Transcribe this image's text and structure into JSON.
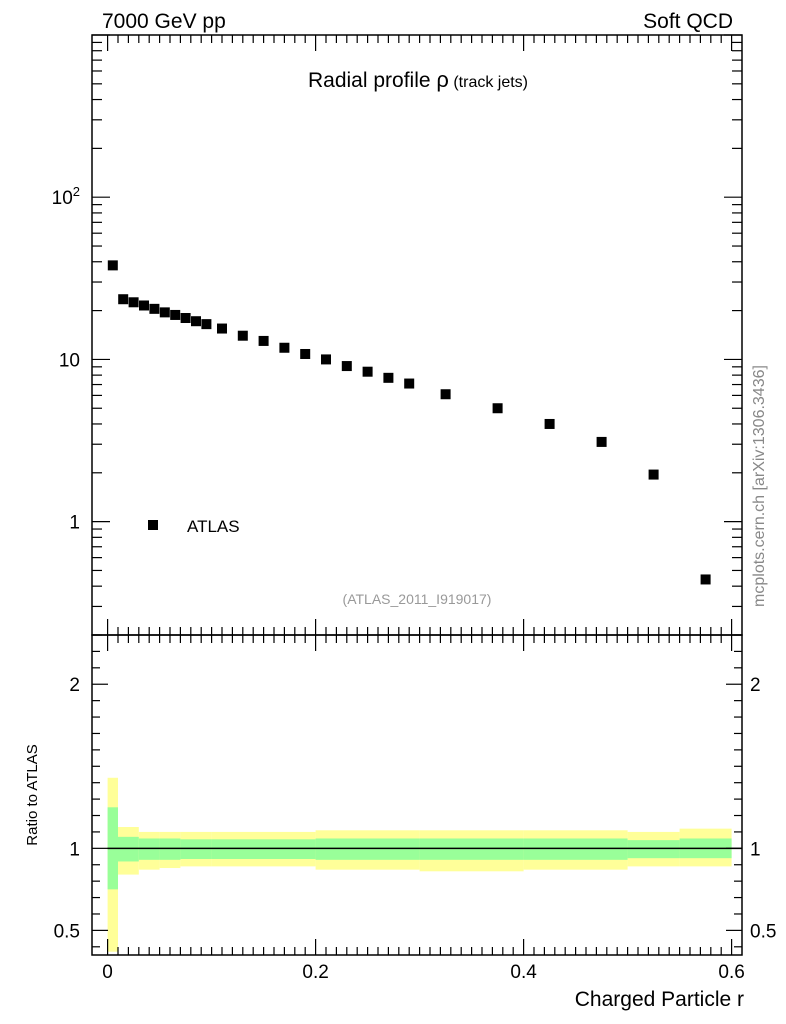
{
  "header": {
    "left": "7000 GeV pp",
    "right": "Soft QCD"
  },
  "side_label": "mcplots.cern.ch [arXiv:1306.3436]",
  "analysis_id": "(ATLAS_2011_I919017)",
  "chart_data": [
    {
      "type": "scatter",
      "panel": "main",
      "title_main": "Radial profile ",
      "title_symbol": "ρ",
      "title_small": " (track jets)",
      "xlabel": "Charged Particle r",
      "ylabel": "",
      "yscale": "log",
      "xlim": [
        -0.015,
        0.61
      ],
      "ylim": [
        0.2,
        1000
      ],
      "yticks": [
        {
          "value": 1,
          "label": "1"
        },
        {
          "value": 10,
          "label": "10"
        },
        {
          "value": 100,
          "label": "10",
          "sup": "2"
        }
      ],
      "legend": {
        "position": "left",
        "entries": [
          "ATLAS"
        ]
      },
      "series": [
        {
          "name": "ATLAS",
          "marker": "square",
          "color": "#000000",
          "points": [
            {
              "x": 0.005,
              "y": 38
            },
            {
              "x": 0.015,
              "y": 23.5
            },
            {
              "x": 0.025,
              "y": 22.5
            },
            {
              "x": 0.035,
              "y": 21.5
            },
            {
              "x": 0.045,
              "y": 20.5
            },
            {
              "x": 0.055,
              "y": 19.5
            },
            {
              "x": 0.065,
              "y": 18.8
            },
            {
              "x": 0.075,
              "y": 18
            },
            {
              "x": 0.085,
              "y": 17.2
            },
            {
              "x": 0.095,
              "y": 16.5
            },
            {
              "x": 0.11,
              "y": 15.5
            },
            {
              "x": 0.13,
              "y": 14
            },
            {
              "x": 0.15,
              "y": 13
            },
            {
              "x": 0.17,
              "y": 11.8
            },
            {
              "x": 0.19,
              "y": 10.8
            },
            {
              "x": 0.21,
              "y": 10
            },
            {
              "x": 0.23,
              "y": 9.1
            },
            {
              "x": 0.25,
              "y": 8.4
            },
            {
              "x": 0.27,
              "y": 7.7
            },
            {
              "x": 0.29,
              "y": 7.1
            },
            {
              "x": 0.325,
              "y": 6.1
            },
            {
              "x": 0.375,
              "y": 5
            },
            {
              "x": 0.425,
              "y": 4
            },
            {
              "x": 0.475,
              "y": 3.1
            },
            {
              "x": 0.525,
              "y": 1.95
            },
            {
              "x": 0.575,
              "y": 0.44
            }
          ]
        }
      ]
    },
    {
      "type": "area",
      "panel": "ratio",
      "xlabel": "Charged Particle r",
      "ylabel": "Ratio to ATLAS",
      "xlim": [
        -0.015,
        0.61
      ],
      "ylim": [
        0.35,
        2.3
      ],
      "xticks": [
        {
          "value": 0,
          "label": "0"
        },
        {
          "value": 0.2,
          "label": "0.2"
        },
        {
          "value": 0.4,
          "label": "0.4"
        },
        {
          "value": 0.6,
          "label": "0.6"
        }
      ],
      "yticks": [
        {
          "value": 0.5,
          "label": "0.5"
        },
        {
          "value": 1,
          "label": "1"
        },
        {
          "value": 2,
          "label": "2"
        }
      ],
      "reference_line": 1,
      "bands": {
        "outer_color": "#ffff99",
        "inner_color": "#99ff99",
        "bins": [
          {
            "x0": 0.0,
            "x1": 0.01,
            "inner": [
              0.75,
              1.25
            ],
            "outer": [
              0.37,
              1.43
            ]
          },
          {
            "x0": 0.01,
            "x1": 0.03,
            "inner": [
              0.92,
              1.07
            ],
            "outer": [
              0.84,
              1.13
            ]
          },
          {
            "x0": 0.03,
            "x1": 0.05,
            "inner": [
              0.93,
              1.06
            ],
            "outer": [
              0.87,
              1.1
            ]
          },
          {
            "x0": 0.05,
            "x1": 0.07,
            "inner": [
              0.93,
              1.06
            ],
            "outer": [
              0.88,
              1.1
            ]
          },
          {
            "x0": 0.07,
            "x1": 0.1,
            "inner": [
              0.935,
              1.055
            ],
            "outer": [
              0.89,
              1.1
            ]
          },
          {
            "x0": 0.1,
            "x1": 0.2,
            "inner": [
              0.935,
              1.055
            ],
            "outer": [
              0.89,
              1.1
            ]
          },
          {
            "x0": 0.2,
            "x1": 0.3,
            "inner": [
              0.93,
              1.06
            ],
            "outer": [
              0.87,
              1.11
            ]
          },
          {
            "x0": 0.3,
            "x1": 0.4,
            "inner": [
              0.93,
              1.06
            ],
            "outer": [
              0.86,
              1.11
            ]
          },
          {
            "x0": 0.4,
            "x1": 0.5,
            "inner": [
              0.93,
              1.06
            ],
            "outer": [
              0.87,
              1.11
            ]
          },
          {
            "x0": 0.5,
            "x1": 0.55,
            "inner": [
              0.94,
              1.05
            ],
            "outer": [
              0.89,
              1.1
            ]
          },
          {
            "x0": 0.55,
            "x1": 0.6,
            "inner": [
              0.94,
              1.06
            ],
            "outer": [
              0.89,
              1.12
            ]
          }
        ]
      }
    }
  ]
}
